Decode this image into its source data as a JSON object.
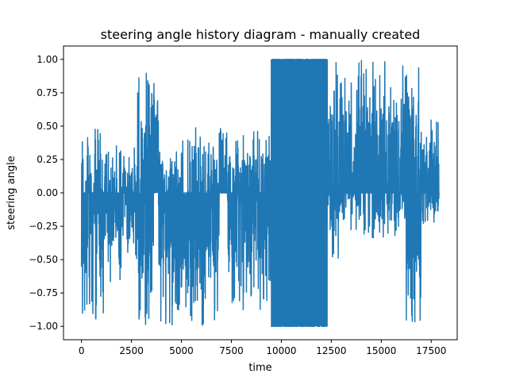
{
  "chart_data": {
    "type": "line",
    "title": "steering angle history diagram - manually created",
    "xlabel": "time",
    "ylabel": "steering angle",
    "xlim": [
      -900,
      18800
    ],
    "ylim": [
      -1.1,
      1.1
    ],
    "xticks": [
      0,
      2500,
      5000,
      7500,
      10000,
      12500,
      15000,
      17500
    ],
    "yticks": [
      -1.0,
      -0.75,
      -0.5,
      -0.25,
      0.0,
      0.25,
      0.5,
      0.75,
      1.0
    ],
    "xtick_labels": [
      "0",
      "2500",
      "5000",
      "7500",
      "10000",
      "12500",
      "15000",
      "17500"
    ],
    "ytick_labels": [
      "−1.00",
      "−0.75",
      "−0.50",
      "−0.25",
      "0.00",
      "0.25",
      "0.50",
      "0.75",
      "1.00"
    ],
    "grid": false,
    "color": "#1f77b4",
    "series": [
      {
        "name": "",
        "segments": [
          {
            "x0": 0,
            "x1": 1100,
            "min": -1.0,
            "max": 0.5,
            "zero_fraction": 0.35
          },
          {
            "x0": 1100,
            "x1": 2200,
            "min": -0.7,
            "max": 0.4,
            "zero_fraction": 0.4
          },
          {
            "x0": 2200,
            "x1": 2800,
            "min": -0.55,
            "max": 0.35,
            "zero_fraction": 0.4
          },
          {
            "x0": 2800,
            "x1": 3600,
            "min": -1.0,
            "max": 0.9,
            "zero_fraction": 0.3
          },
          {
            "x0": 3600,
            "x1": 3850,
            "min": 0.0,
            "max": 1.0,
            "zero_fraction": 0.2
          },
          {
            "x0": 3850,
            "x1": 5600,
            "min": -1.0,
            "max": 0.4,
            "zero_fraction": 0.3
          },
          {
            "x0": 5600,
            "x1": 6900,
            "min": -1.0,
            "max": 0.5,
            "zero_fraction": 0.3
          },
          {
            "x0": 6900,
            "x1": 7300,
            "min": 0.0,
            "max": 0.5,
            "zero_fraction": 0.5
          },
          {
            "x0": 7300,
            "x1": 9500,
            "min": -0.9,
            "max": 0.5,
            "zero_fraction": 0.3
          },
          {
            "x0": 9500,
            "x1": 12300,
            "min": -1.0,
            "max": 1.0,
            "zero_fraction": 0.05
          },
          {
            "x0": 12300,
            "x1": 13000,
            "min": -0.5,
            "max": 1.0,
            "zero_fraction": 0.4
          },
          {
            "x0": 13000,
            "x1": 16200,
            "min": -0.35,
            "max": 1.0,
            "zero_fraction": 0.45
          },
          {
            "x0": 16200,
            "x1": 17000,
            "min": -1.0,
            "max": 1.0,
            "zero_fraction": 0.3
          },
          {
            "x0": 17000,
            "x1": 17900,
            "min": -0.25,
            "max": 0.55,
            "zero_fraction": 0.4
          }
        ]
      }
    ]
  }
}
